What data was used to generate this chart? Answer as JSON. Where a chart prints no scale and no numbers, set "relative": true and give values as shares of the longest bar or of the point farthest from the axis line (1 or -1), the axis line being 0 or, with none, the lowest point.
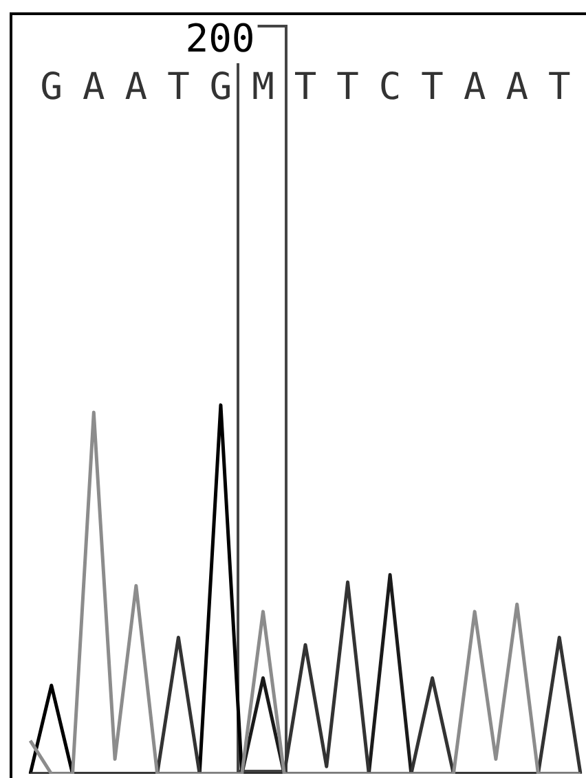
{
  "chart_data": {
    "type": "line",
    "relative": true,
    "legend": false,
    "marker": "none",
    "line_style": "solid",
    "categories": [
      null,
      "G",
      null,
      "A",
      null,
      "A",
      null,
      "T",
      null,
      "G",
      null,
      "M",
      null,
      "T",
      null,
      "T",
      null,
      "C",
      null,
      "T",
      null,
      "A",
      null,
      "A",
      null,
      "T",
      null
    ],
    "series": [
      {
        "color": "#8c8c8c",
        "values": [
          0.09,
          0,
          0,
          0.98,
          0.04,
          0.51,
          0,
          0,
          0,
          0,
          0,
          0.44,
          0,
          0,
          0,
          0,
          0,
          0,
          0,
          0,
          0,
          0.44,
          0.04,
          0.46,
          0,
          0,
          0
        ]
      },
      {
        "color": "#333333",
        "values": [
          0,
          0,
          0,
          0,
          0,
          0,
          0,
          0.37,
          0,
          0,
          0,
          0,
          0,
          0.35,
          0.02,
          0.52,
          0,
          0,
          0,
          0.26,
          0,
          0,
          0,
          0,
          0,
          0.37,
          0
        ]
      },
      {
        "color": "#000000",
        "values": [
          0,
          0.24,
          0,
          0,
          0,
          0,
          0,
          0,
          0,
          1,
          0,
          0,
          0,
          0,
          0,
          0,
          0,
          0,
          0,
          0,
          0,
          0,
          0,
          0,
          0,
          0,
          0
        ]
      },
      {
        "color": "#1a1a1a",
        "values": [
          0,
          0,
          0,
          0,
          0,
          0,
          0,
          0,
          0,
          0,
          0,
          0.26,
          0,
          0,
          0,
          0,
          0,
          0.54,
          0,
          0,
          0,
          0,
          0,
          0,
          0,
          0,
          0
        ]
      }
    ],
    "annotations": [
      "200"
    ]
  }
}
